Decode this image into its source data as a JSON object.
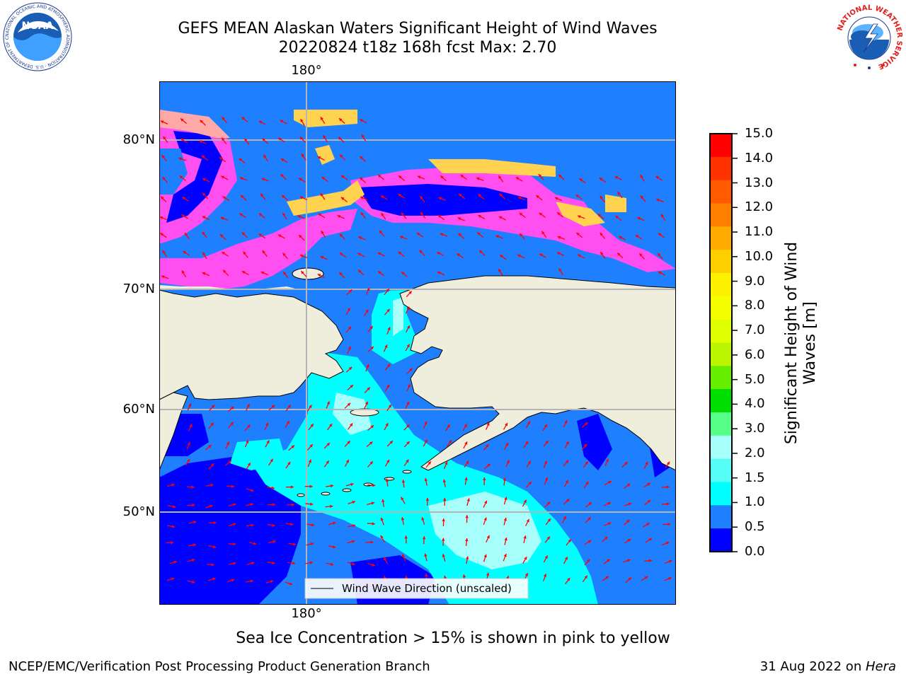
{
  "title": {
    "line1": "GEFS MEAN Alaskan Waters Significant Height of Wind Waves",
    "line2": "20220824 t18z 168h fcst   Max: 2.70"
  },
  "map": {
    "lon_label_top": "180°",
    "lon_label_bottom": "180°",
    "lat_labels": [
      "80°N",
      "70°N",
      "60°N",
      "50°N"
    ],
    "legend_label": "Wind Wave Direction (unscaled)",
    "colors": {
      "land": "#efeedd",
      "ice": [
        "#ff4ff0",
        "#ffa8a8",
        "#ffd24f"
      ],
      "water_levels": [
        "#0000ff",
        "#1e80ff",
        "#00ffff",
        "#a6fffa"
      ],
      "arrow": "#ff0000",
      "grid": "#b5b5b5"
    }
  },
  "colorbar": {
    "label_line1": "Significant Height of Wind",
    "label_line2": "Waves [m]",
    "ticks": [
      "15.0",
      "14.0",
      "13.0",
      "12.0",
      "11.0",
      "10.0",
      "9.0",
      "8.0",
      "7.0",
      "6.0",
      "5.0",
      "4.0",
      "3.0",
      "2.0",
      "1.5",
      "1.0",
      "0.5",
      "0.0"
    ],
    "colors_top_to_bottom": [
      "#ff0000",
      "#ff3300",
      "#ff5a00",
      "#ff8000",
      "#ffaa00",
      "#ffd000",
      "#fff200",
      "#f5ff00",
      "#e0ff00",
      "#bbf500",
      "#66ee00",
      "#00dd00",
      "#55ff88",
      "#a6fffa",
      "#55fff5",
      "#00ffff",
      "#1e80ff",
      "#0000ff"
    ]
  },
  "logos": {
    "noaa_text": "NOAA",
    "noaa_ring": "NATIONAL OCEANIC AND ATMOSPHERIC ADMINISTRATION · U.S. DEPARTMENT OF COMMERCE",
    "nws_ring": "NATIONAL WEATHER SERVICE"
  },
  "caption": "Sea Ice Concentration > 15% is shown in pink to yellow",
  "footer": {
    "left": "NCEP/EMC/Verification Post Processing Product Generation Branch",
    "right_date": "31 Aug 2022 on ",
    "right_machine": "Hera"
  }
}
